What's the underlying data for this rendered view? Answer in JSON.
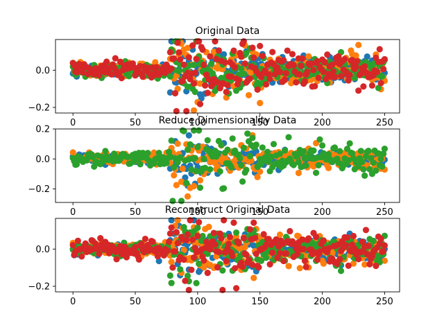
{
  "figure": {
    "background": "#ffffff"
  },
  "colors": {
    "series_palette": [
      "#1f77b4",
      "#ff7f0e",
      "#2ca02c",
      "#d62728"
    ]
  },
  "chart_data": [
    {
      "type": "scatter",
      "title": "Original Data",
      "xlabel": "",
      "ylabel": "",
      "xlim": [
        -14,
        262
      ],
      "ylim": [
        -0.23,
        0.165
      ],
      "xticks": [
        0,
        50,
        100,
        150,
        200,
        250
      ],
      "yticks": [
        -0.2,
        0.0
      ],
      "ytick_labels": [
        "−0.2",
        "0.0"
      ],
      "grid": false,
      "n_points_per_series": 251,
      "series": [
        {
          "color": "#1f77b4",
          "seed": 11,
          "amp": 0.028
        },
        {
          "color": "#ff7f0e",
          "seed": 23,
          "amp": 0.036
        },
        {
          "color": "#2ca02c",
          "seed": 37,
          "amp": 0.03
        },
        {
          "color": "#d62728",
          "seed": 51,
          "amp": 0.04
        }
      ]
    },
    {
      "type": "scatter",
      "title": "Reduce Dimensionality Data",
      "xlabel": "",
      "ylabel": "",
      "xlim": [
        -14,
        262
      ],
      "ylim": [
        -0.29,
        0.2
      ],
      "xticks": [
        0,
        50,
        100,
        150,
        200,
        250
      ],
      "yticks": [
        -0.2,
        0.0,
        0.2
      ],
      "ytick_labels": [
        "−0.2",
        "0.0",
        "0.2"
      ],
      "grid": false,
      "n_points_per_series": 251,
      "series": [
        {
          "color": "#1f77b4",
          "seed": 63,
          "amp": 0.022
        },
        {
          "color": "#ff7f0e",
          "seed": 79,
          "amp": 0.03
        },
        {
          "color": "#2ca02c",
          "seed": 97,
          "amp": 0.046
        }
      ]
    },
    {
      "type": "scatter",
      "title": "Reconstruct Original Data",
      "xlabel": "",
      "ylabel": "",
      "xlim": [
        -14,
        262
      ],
      "ylim": [
        -0.23,
        0.165
      ],
      "xticks": [
        0,
        50,
        100,
        150,
        200,
        250
      ],
      "yticks": [
        -0.2,
        0.0
      ],
      "ytick_labels": [
        "−0.2",
        "0.0"
      ],
      "grid": false,
      "n_points_per_series": 251,
      "series": [
        {
          "color": "#1f77b4",
          "seed": 111,
          "amp": 0.028
        },
        {
          "color": "#ff7f0e",
          "seed": 127,
          "amp": 0.036
        },
        {
          "color": "#2ca02c",
          "seed": 139,
          "amp": 0.03
        },
        {
          "color": "#d62728",
          "seed": 151,
          "amp": 0.04
        }
      ]
    }
  ]
}
